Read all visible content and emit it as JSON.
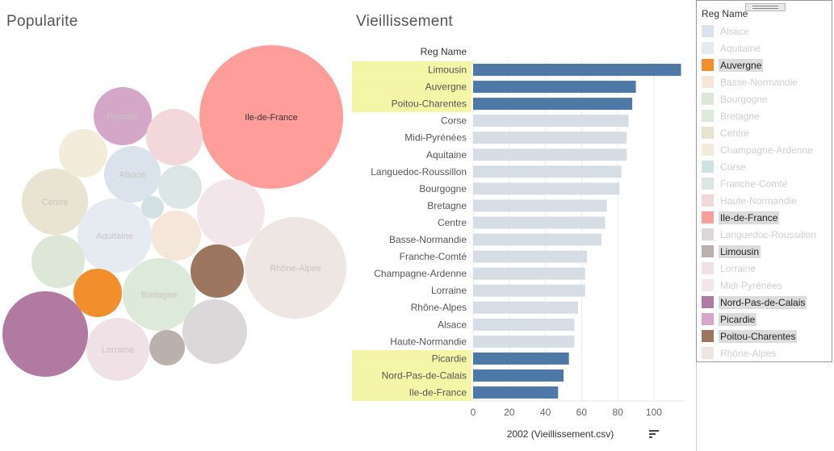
{
  "popularite": {
    "title": "Popularite",
    "bubbles": [
      {
        "name": "Ile-de-France",
        "color": "#ff9d9a",
        "labeled": true
      },
      {
        "name": "Rhône-Alpes",
        "color": "#ede6e3",
        "labeled": true
      },
      {
        "name": "Nord-Pas-de-Calais",
        "color": "#b07aa1",
        "labeled": false
      },
      {
        "name": "Centre",
        "color": "#e9e3d2",
        "labeled": true
      },
      {
        "name": "Aquitaine",
        "color": "#e6ebf2",
        "labeled": true
      },
      {
        "name": "Bretagne",
        "color": "#dde9d9",
        "labeled": true
      },
      {
        "name": "Lorraine",
        "color": "#efe1e5",
        "labeled": true
      },
      {
        "name": "Picardie",
        "color": "#d4a6c8",
        "labeled": true
      },
      {
        "name": "Alsace",
        "color": "#dae3ec",
        "labeled": true
      },
      {
        "name": "Languedoc-Roussillon",
        "color": "#dcd7d8",
        "labeled": false
      },
      {
        "name": "Midi-Pyrénées",
        "color": "#f2e6ea",
        "labeled": false
      },
      {
        "name": "Poitou-Charentes",
        "color": "#9d7660",
        "labeled": false
      },
      {
        "name": "Haute-Normandie",
        "color": "#f2d8da",
        "labeled": false
      },
      {
        "name": "Bourgogne",
        "color": "#dce7d8",
        "labeled": false
      },
      {
        "name": "Champagne-Ardenne",
        "color": "#f4ecda",
        "labeled": false
      },
      {
        "name": "Basse-Normandie",
        "color": "#f5e6da",
        "labeled": false
      },
      {
        "name": "Franche-Comté",
        "color": "#dce6e4",
        "labeled": false
      },
      {
        "name": "Auvergne",
        "color": "#f28e2b",
        "labeled": false
      },
      {
        "name": "Limousin",
        "color": "#bab0ac",
        "labeled": false
      },
      {
        "name": "Corse",
        "color": "#d1e0e1",
        "labeled": false
      }
    ]
  },
  "chart_data": {
    "type": "bar",
    "title": "Vieillissement",
    "row_header": "Reg Name",
    "xlabel": "2002 (Vieillissement.csv)",
    "xlim": [
      0,
      117
    ],
    "xticks": [
      0,
      20,
      40,
      60,
      80,
      100
    ],
    "categories": [
      "Limousin",
      "Auvergne",
      "Poitou-Charentes",
      "Corse",
      "Midi-Pyrénées",
      "Aquitaine",
      "Languedoc-Roussillon",
      "Bourgogne",
      "Bretagne",
      "Centre",
      "Basse-Normandie",
      "Franche-Comté",
      "Champagne-Ardenne",
      "Lorraine",
      "Rhône-Alpes",
      "Alsace",
      "Haute-Normandie",
      "Picardie",
      "Nord-Pas-de-Calais",
      "Ile-de-France"
    ],
    "values": [
      115,
      90,
      88,
      86,
      85,
      85,
      82,
      81,
      74,
      73,
      71,
      63,
      62,
      62,
      58,
      56,
      56,
      53,
      50,
      47
    ],
    "highlighted": [
      "Limousin",
      "Auvergne",
      "Poitou-Charentes",
      "Picardie",
      "Nord-Pas-de-Calais",
      "Ile-de-France"
    ],
    "colors": {
      "highlight_bar": "#4e79a7",
      "dim_bar": "#d6dde5",
      "highlight_label_bg": "#f5f5a8"
    }
  },
  "legend": {
    "title": "Reg Name",
    "items": [
      {
        "name": "Alsace",
        "color": "#dae3ec",
        "selected": false
      },
      {
        "name": "Aquitaine",
        "color": "#e6ebf2",
        "selected": false
      },
      {
        "name": "Auvergne",
        "color": "#f28e2b",
        "selected": true
      },
      {
        "name": "Basse-Normandie",
        "color": "#f5e6da",
        "selected": false
      },
      {
        "name": "Bourgogne",
        "color": "#dce7d8",
        "selected": false
      },
      {
        "name": "Bretagne",
        "color": "#dde9d9",
        "selected": false
      },
      {
        "name": "Centre",
        "color": "#e9e3d2",
        "selected": false
      },
      {
        "name": "Champagne-Ardenne",
        "color": "#f4ecda",
        "selected": false
      },
      {
        "name": "Corse",
        "color": "#d1e0e1",
        "selected": false
      },
      {
        "name": "Franche-Comté",
        "color": "#dce6e4",
        "selected": false
      },
      {
        "name": "Haute-Normandie",
        "color": "#f2d8da",
        "selected": false
      },
      {
        "name": "Ile-de-France",
        "color": "#ff9d9a",
        "selected": true
      },
      {
        "name": "Languedoc-Roussillon",
        "color": "#dcd7d8",
        "selected": false
      },
      {
        "name": "Limousin",
        "color": "#bab0ac",
        "selected": true
      },
      {
        "name": "Lorraine",
        "color": "#efe1e5",
        "selected": false
      },
      {
        "name": "Midi-Pyrénées",
        "color": "#f2e6ea",
        "selected": false
      },
      {
        "name": "Nord-Pas-de-Calais",
        "color": "#b07aa1",
        "selected": true
      },
      {
        "name": "Picardie",
        "color": "#d4a6c8",
        "selected": true
      },
      {
        "name": "Poitou-Charentes",
        "color": "#9d7660",
        "selected": true
      },
      {
        "name": "Rhône-Alpes",
        "color": "#ede6e3",
        "selected": false
      }
    ]
  }
}
